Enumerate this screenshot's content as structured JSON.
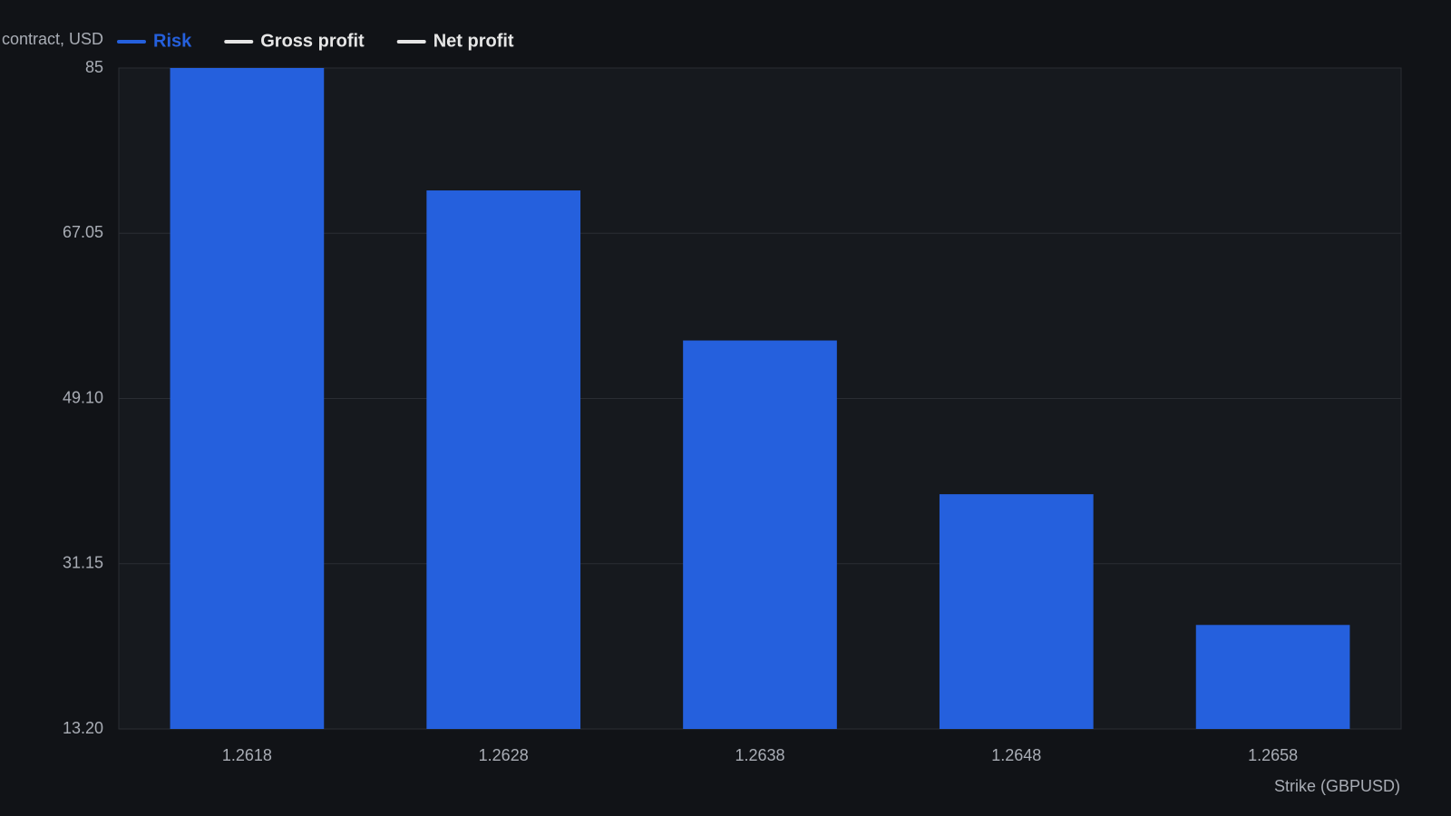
{
  "chart_data": {
    "type": "bar",
    "y_axis_label": "contract, USD",
    "x_axis_label": "Strike (GBPUSD)",
    "categories": [
      "1.2618",
      "1.2628",
      "1.2638",
      "1.2648",
      "1.2658"
    ],
    "series": [
      {
        "name": "Risk",
        "color": "#2560dd",
        "values": [
          85,
          71.7,
          55.4,
          38.7,
          24.5
        ]
      },
      {
        "name": "Gross profit",
        "color": "#e6e6e6",
        "values": [
          null,
          null,
          null,
          null,
          null
        ]
      },
      {
        "name": "Net profit",
        "color": "#e6e6e6",
        "values": [
          null,
          null,
          null,
          null,
          null
        ]
      }
    ],
    "ylim": [
      13.2,
      85
    ],
    "yticks": [
      {
        "value": 13.2,
        "label": "13.20"
      },
      31.15,
      {
        "value": 49.1,
        "label": "49.10"
      },
      67.05,
      85
    ],
    "grid": true
  }
}
